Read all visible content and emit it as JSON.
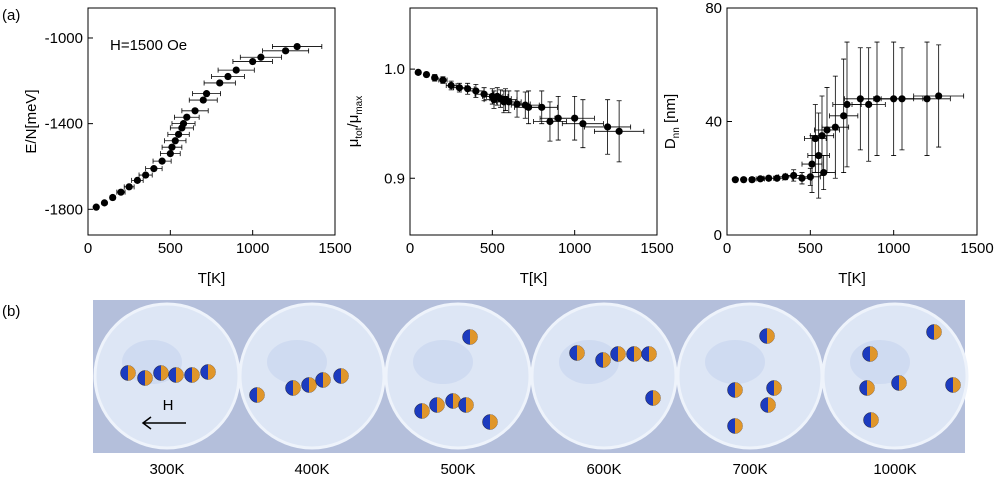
{
  "panel_labels": [
    "(a)",
    "(b)"
  ],
  "chart_data": [
    {
      "type": "scatter",
      "annotation": "H=1500 Oe",
      "xlabel": "T[K]",
      "ylabel": [
        {
          "text": "E/N[meV]"
        }
      ],
      "x": [
        50,
        100,
        150,
        200,
        250,
        300,
        350,
        400,
        450,
        500,
        510,
        530,
        550,
        570,
        580,
        600,
        650,
        700,
        720,
        800,
        850,
        900,
        1000,
        1050,
        1200,
        1270
      ],
      "values": [
        -1790,
        -1770,
        -1745,
        -1720,
        -1695,
        -1665,
        -1640,
        -1610,
        -1575,
        -1540,
        -1510,
        -1480,
        -1450,
        -1420,
        -1400,
        -1370,
        -1340,
        -1290,
        -1260,
        -1210,
        -1180,
        -1150,
        -1110,
        -1090,
        -1060,
        -1040
      ],
      "x_errors": [
        5,
        10,
        15,
        25,
        30,
        35,
        40,
        50,
        55,
        60,
        60,
        65,
        65,
        70,
        70,
        75,
        80,
        85,
        85,
        95,
        100,
        110,
        120,
        125,
        140,
        150
      ],
      "color": "#000000",
      "xlim": [
        0,
        1500
      ],
      "xticks": [
        0,
        500,
        1000,
        1500
      ],
      "ylim": [
        -1920,
        -860
      ],
      "yticks": [
        -1800,
        -1400,
        -1000
      ]
    },
    {
      "type": "scatter",
      "xlabel": "T[K]",
      "ylabel": [
        {
          "text": "μ"
        },
        {
          "text": "tot",
          "sub": true
        },
        {
          "text": "/μ"
        },
        {
          "text": "max",
          "sub": true
        }
      ],
      "x": [
        50,
        100,
        150,
        200,
        250,
        300,
        350,
        400,
        450,
        500,
        510,
        530,
        550,
        570,
        580,
        600,
        650,
        700,
        720,
        800,
        850,
        900,
        1000,
        1050,
        1200,
        1270
      ],
      "values": [
        0.997,
        0.995,
        0.992,
        0.99,
        0.985,
        0.983,
        0.982,
        0.98,
        0.977,
        0.975,
        0.972,
        0.975,
        0.973,
        0.97,
        0.972,
        0.97,
        0.968,
        0.967,
        0.965,
        0.965,
        0.952,
        0.955,
        0.955,
        0.95,
        0.947,
        0.943
      ],
      "x_errors": [
        5,
        10,
        15,
        25,
        30,
        35,
        40,
        50,
        55,
        60,
        60,
        65,
        65,
        70,
        70,
        75,
        80,
        85,
        85,
        95,
        100,
        110,
        120,
        125,
        140,
        150
      ],
      "y_errors": [
        0.002,
        0.002,
        0.003,
        0.003,
        0.004,
        0.004,
        0.005,
        0.006,
        0.006,
        0.007,
        0.008,
        0.008,
        0.008,
        0.01,
        0.01,
        0.01,
        0.012,
        0.012,
        0.015,
        0.015,
        0.018,
        0.02,
        0.02,
        0.022,
        0.025,
        0.028
      ],
      "color": "#000000",
      "xlim": [
        0,
        1500
      ],
      "xticks": [
        0,
        500,
        1000,
        1500
      ],
      "ylim": [
        0.848,
        1.056
      ],
      "yticks": [
        0.9,
        {
          "value": 1,
          "label": "1.0"
        }
      ]
    },
    {
      "type": "scatter",
      "xlabel": "T[K]",
      "ylabel": [
        {
          "text": "D"
        },
        {
          "text": "nn",
          "sub": true
        },
        {
          "text": " [nm]"
        }
      ],
      "x": [
        50,
        100,
        150,
        200,
        250,
        300,
        350,
        400,
        450,
        500,
        510,
        530,
        550,
        570,
        580,
        600,
        650,
        700,
        720,
        800,
        850,
        900,
        1000,
        1050,
        1200,
        1270
      ],
      "values": [
        19.5,
        19.5,
        19.5,
        19.8,
        20,
        20,
        20.5,
        21,
        20,
        20.5,
        25,
        34,
        28,
        35,
        22,
        37,
        38,
        42,
        46,
        48,
        46,
        48,
        48,
        48,
        48,
        49
      ],
      "x_errors": [
        5,
        10,
        15,
        25,
        30,
        35,
        40,
        50,
        55,
        60,
        60,
        65,
        65,
        70,
        70,
        75,
        80,
        85,
        85,
        95,
        100,
        110,
        120,
        125,
        140,
        150
      ],
      "y_errors": [
        0.5,
        0.5,
        0.5,
        0.5,
        0.5,
        0.5,
        1,
        2,
        2,
        3,
        10,
        12,
        15,
        14,
        6,
        15,
        18,
        20,
        22,
        18,
        20,
        20,
        20,
        18,
        20,
        18
      ],
      "color": "#000000",
      "xlim": [
        0,
        1500
      ],
      "xticks": [
        0,
        500,
        1000,
        1500
      ],
      "ylim": [
        0,
        80
      ],
      "yticks": [
        0,
        40,
        80
      ]
    }
  ],
  "snapshots": {
    "field_label": "H",
    "labels": [
      "300K",
      "400K",
      "500K",
      "600K",
      "700K",
      "1000K"
    ]
  }
}
